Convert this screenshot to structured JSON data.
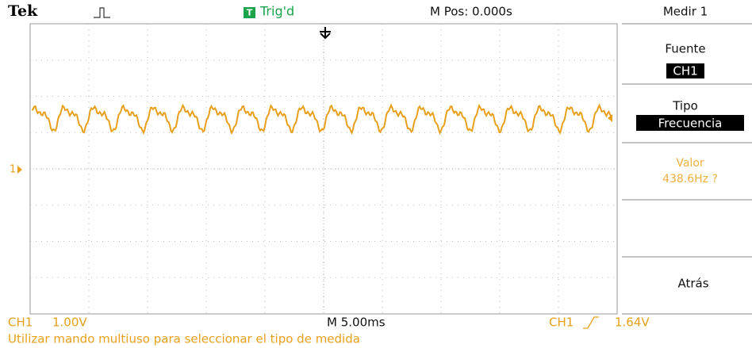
{
  "header": {
    "brand": "Tek",
    "trigger_badge": "T",
    "trigger_status": "Trig'd",
    "position": "M Pos: 0.000s"
  },
  "menu": {
    "title": "Medir 1",
    "items": [
      {
        "label": "Fuente",
        "value": "CH1"
      },
      {
        "label": "Tipo",
        "value": "Frecuencia"
      },
      {
        "label": "Valor",
        "value": "438.6Hz ?"
      }
    ],
    "back": "Atrás"
  },
  "marker": "1",
  "footer": {
    "channel": "CH1",
    "volts": "1.00V",
    "timebase": "M 5.00ms",
    "trigger_source": "CH1",
    "trigger_level": "1.64V",
    "hint": "Utilizar mando multiuso para seleccionar el tipo de medida"
  }
}
